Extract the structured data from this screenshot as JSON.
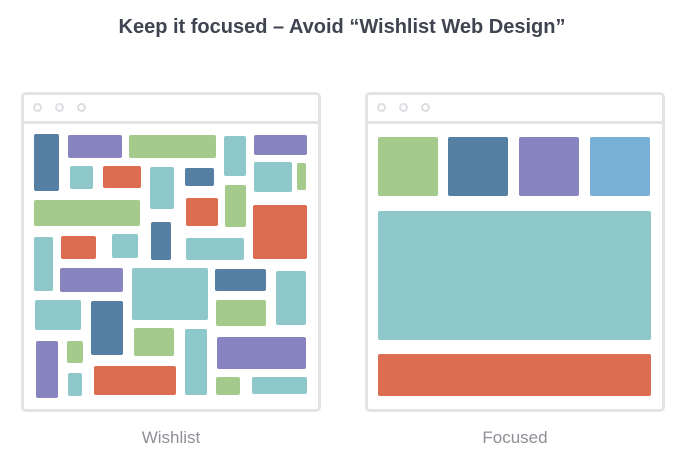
{
  "title": "Keep it focused – Avoid “Wishlist Web Design”",
  "colors": {
    "green": "#a5cb8c",
    "blue": "#557fa3",
    "purple": "#8884bf",
    "teal": "#8ec8ca",
    "orange": "#dc6d51",
    "sky": "#79b1d6"
  },
  "panels": {
    "wishlist": {
      "caption": "Wishlist"
    },
    "focused": {
      "caption": "Focused"
    }
  }
}
